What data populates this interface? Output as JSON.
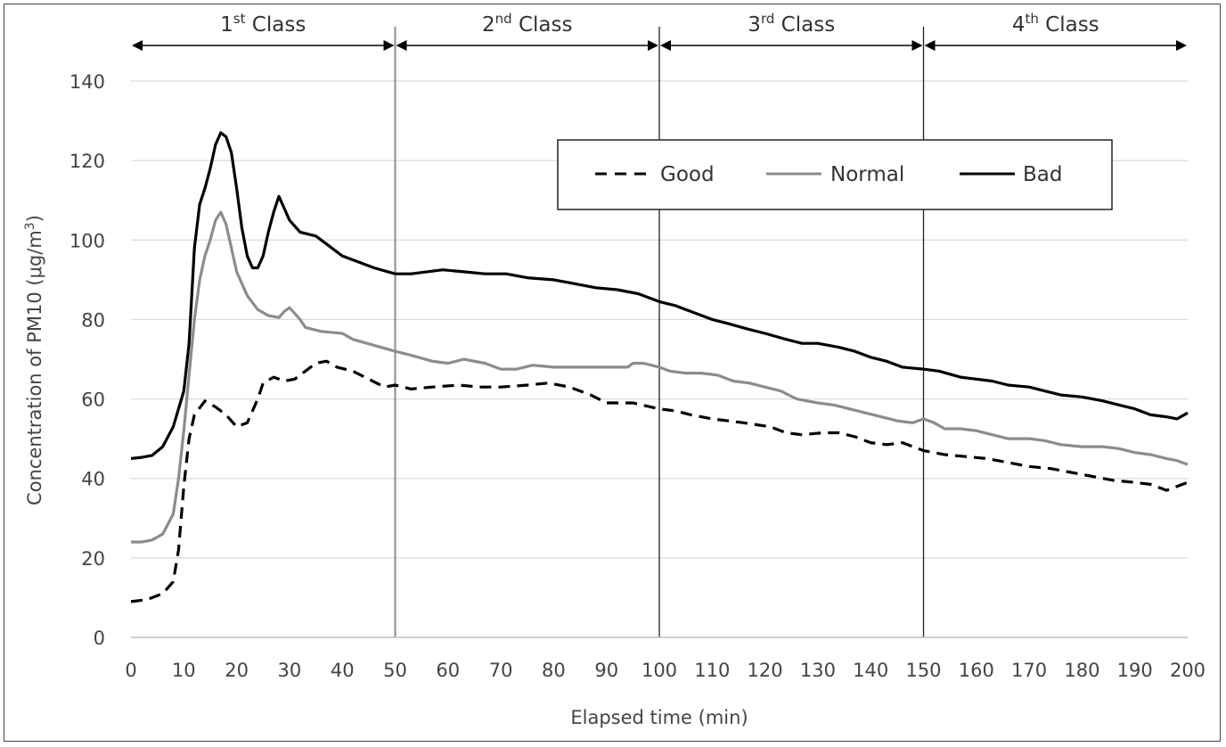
{
  "chart_data": {
    "type": "line",
    "title": "",
    "xlabel": "Elapsed time (min)",
    "ylabel_main": "Concentration of PM10 (μg/m",
    "ylabel_sup": "3",
    "ylabel_close": ")",
    "xlim": [
      0,
      200
    ],
    "ylim": [
      0,
      140
    ],
    "x_ticks": [
      0,
      10,
      20,
      30,
      40,
      50,
      60,
      70,
      80,
      90,
      100,
      110,
      120,
      130,
      140,
      150,
      160,
      170,
      180,
      190,
      200
    ],
    "y_ticks": [
      0,
      20,
      40,
      60,
      80,
      100,
      120,
      140
    ],
    "grid": "horizontal",
    "legend_position": "top-right",
    "class_regions": [
      {
        "start": 0,
        "end": 50,
        "number": "1",
        "sup": "st",
        "word": " Class"
      },
      {
        "start": 50,
        "end": 100,
        "number": "2",
        "sup": "nd",
        "word": " Class"
      },
      {
        "start": 100,
        "end": 150,
        "number": "3",
        "sup": "rd",
        "word": " Class"
      },
      {
        "start": 150,
        "end": 200,
        "number": "4",
        "sup": "th",
        "word": " Class"
      }
    ],
    "series": [
      {
        "name": "Good",
        "color": "#000000",
        "style": "dashed",
        "points": [
          [
            0,
            9
          ],
          [
            3,
            9.5
          ],
          [
            6,
            11
          ],
          [
            8,
            14
          ],
          [
            9,
            22
          ],
          [
            10,
            38
          ],
          [
            11,
            50
          ],
          [
            12,
            56
          ],
          [
            14,
            59.5
          ],
          [
            16,
            58
          ],
          [
            18,
            56
          ],
          [
            20,
            53
          ],
          [
            22,
            54
          ],
          [
            24,
            60
          ],
          [
            25,
            64
          ],
          [
            27,
            65.5
          ],
          [
            29,
            64.5
          ],
          [
            31,
            65
          ],
          [
            33,
            67
          ],
          [
            35,
            69
          ],
          [
            37,
            69.5
          ],
          [
            39,
            68
          ],
          [
            42,
            67
          ],
          [
            45,
            65
          ],
          [
            48,
            63
          ],
          [
            50,
            63.5
          ],
          [
            53,
            62.5
          ],
          [
            57,
            63
          ],
          [
            62,
            63.5
          ],
          [
            66,
            63
          ],
          [
            70,
            63
          ],
          [
            75,
            63.5
          ],
          [
            79,
            64
          ],
          [
            83,
            63
          ],
          [
            87,
            61
          ],
          [
            90,
            59
          ],
          [
            95,
            59
          ],
          [
            100,
            57.5
          ],
          [
            103,
            57
          ],
          [
            106,
            56
          ],
          [
            110,
            55
          ],
          [
            116,
            54
          ],
          [
            121,
            53
          ],
          [
            124,
            51.5
          ],
          [
            127,
            51
          ],
          [
            131,
            51.5
          ],
          [
            134,
            51.5
          ],
          [
            137,
            50.5
          ],
          [
            140,
            49
          ],
          [
            143,
            48.5
          ],
          [
            146,
            49
          ],
          [
            150,
            47
          ],
          [
            154,
            46
          ],
          [
            158,
            45.5
          ],
          [
            162,
            45
          ],
          [
            166,
            44
          ],
          [
            170,
            43
          ],
          [
            174,
            42.5
          ],
          [
            178,
            41.5
          ],
          [
            182,
            40.5
          ],
          [
            186,
            39.5
          ],
          [
            190,
            39
          ],
          [
            193,
            38.5
          ],
          [
            196,
            37
          ],
          [
            198,
            38
          ],
          [
            200,
            39
          ]
        ]
      },
      {
        "name": "Normal",
        "color": "#8c8c8c",
        "style": "solid",
        "points": [
          [
            0,
            24
          ],
          [
            2,
            24
          ],
          [
            4,
            24.5
          ],
          [
            6,
            26
          ],
          [
            8,
            31
          ],
          [
            9,
            40
          ],
          [
            10,
            52
          ],
          [
            11,
            66
          ],
          [
            12,
            80
          ],
          [
            13,
            90
          ],
          [
            14,
            96
          ],
          [
            15,
            100
          ],
          [
            16,
            105
          ],
          [
            17,
            107
          ],
          [
            18,
            104
          ],
          [
            19,
            98
          ],
          [
            20,
            92
          ],
          [
            22,
            86
          ],
          [
            24,
            82.5
          ],
          [
            26,
            81
          ],
          [
            28,
            80.5
          ],
          [
            29,
            82
          ],
          [
            30,
            83
          ],
          [
            32,
            80
          ],
          [
            33,
            78
          ],
          [
            36,
            77
          ],
          [
            40,
            76.5
          ],
          [
            42,
            75
          ],
          [
            46,
            73.5
          ],
          [
            50,
            72
          ],
          [
            53,
            71
          ],
          [
            57,
            69.5
          ],
          [
            60,
            69
          ],
          [
            63,
            70
          ],
          [
            67,
            69
          ],
          [
            70,
            67.5
          ],
          [
            73,
            67.5
          ],
          [
            76,
            68.5
          ],
          [
            80,
            68
          ],
          [
            85,
            68
          ],
          [
            90,
            68
          ],
          [
            94,
            68
          ],
          [
            95,
            69
          ],
          [
            97,
            69
          ],
          [
            100,
            68
          ],
          [
            102,
            67
          ],
          [
            105,
            66.5
          ],
          [
            108,
            66.5
          ],
          [
            111,
            66
          ],
          [
            114,
            64.5
          ],
          [
            117,
            64
          ],
          [
            120,
            63
          ],
          [
            123,
            62
          ],
          [
            126,
            60
          ],
          [
            128,
            59.5
          ],
          [
            130,
            59
          ],
          [
            133,
            58.5
          ],
          [
            136,
            57.5
          ],
          [
            139,
            56.5
          ],
          [
            142,
            55.5
          ],
          [
            145,
            54.5
          ],
          [
            148,
            54
          ],
          [
            150,
            55
          ],
          [
            152,
            54
          ],
          [
            154,
            52.5
          ],
          [
            157,
            52.5
          ],
          [
            160,
            52
          ],
          [
            163,
            51
          ],
          [
            166,
            50
          ],
          [
            170,
            50
          ],
          [
            173,
            49.5
          ],
          [
            176,
            48.5
          ],
          [
            180,
            48
          ],
          [
            184,
            48
          ],
          [
            187,
            47.5
          ],
          [
            190,
            46.5
          ],
          [
            193,
            46
          ],
          [
            196,
            45
          ],
          [
            198,
            44.5
          ],
          [
            200,
            43.5
          ]
        ]
      },
      {
        "name": "Bad",
        "color": "#000000",
        "style": "solid",
        "points": [
          [
            0,
            45
          ],
          [
            2,
            45.3
          ],
          [
            4,
            45.8
          ],
          [
            6,
            48
          ],
          [
            8,
            53
          ],
          [
            10,
            62
          ],
          [
            11,
            74
          ],
          [
            12,
            98
          ],
          [
            13,
            109
          ],
          [
            14,
            113
          ],
          [
            15,
            118
          ],
          [
            16,
            124
          ],
          [
            17,
            127
          ],
          [
            18,
            126
          ],
          [
            19,
            122
          ],
          [
            20,
            113
          ],
          [
            21,
            103
          ],
          [
            22,
            96
          ],
          [
            23,
            93
          ],
          [
            24,
            93
          ],
          [
            25,
            96
          ],
          [
            26,
            102
          ],
          [
            27,
            107
          ],
          [
            28,
            111
          ],
          [
            29,
            108
          ],
          [
            30,
            105
          ],
          [
            32,
            102
          ],
          [
            35,
            101
          ],
          [
            37,
            99
          ],
          [
            40,
            96
          ],
          [
            43,
            94.5
          ],
          [
            46,
            93
          ],
          [
            50,
            91.5
          ],
          [
            53,
            91.5
          ],
          [
            56,
            92
          ],
          [
            59,
            92.5
          ],
          [
            63,
            92
          ],
          [
            67,
            91.5
          ],
          [
            71,
            91.5
          ],
          [
            75,
            90.5
          ],
          [
            80,
            90
          ],
          [
            84,
            89
          ],
          [
            88,
            88
          ],
          [
            92,
            87.5
          ],
          [
            96,
            86.5
          ],
          [
            100,
            84.5
          ],
          [
            103,
            83.5
          ],
          [
            106,
            82
          ],
          [
            110,
            80
          ],
          [
            113,
            79
          ],
          [
            117,
            77.5
          ],
          [
            120,
            76.5
          ],
          [
            124,
            75
          ],
          [
            127,
            74
          ],
          [
            130,
            74
          ],
          [
            134,
            73
          ],
          [
            137,
            72
          ],
          [
            140,
            70.5
          ],
          [
            143,
            69.5
          ],
          [
            146,
            68
          ],
          [
            150,
            67.5
          ],
          [
            153,
            67
          ],
          [
            157,
            65.5
          ],
          [
            160,
            65
          ],
          [
            163,
            64.5
          ],
          [
            166,
            63.5
          ],
          [
            170,
            63
          ],
          [
            173,
            62
          ],
          [
            176,
            61
          ],
          [
            180,
            60.5
          ],
          [
            184,
            59.5
          ],
          [
            187,
            58.5
          ],
          [
            190,
            57.5
          ],
          [
            193,
            56
          ],
          [
            196,
            55.5
          ],
          [
            198,
            55
          ],
          [
            200,
            56.5
          ]
        ]
      }
    ]
  }
}
